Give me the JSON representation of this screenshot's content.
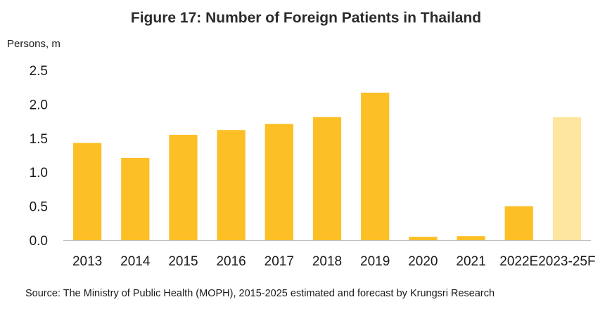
{
  "title": "Figure 17: Number of Foreign Patients in Thailand",
  "source": "Source: The Ministry of Public Health (MOPH),  2015-2025 estimated and forecast by Krungsri Research",
  "colors": {
    "bar": "#FDBF26",
    "bar_forecast": "#FEE5A0",
    "axis": "#bfbfbf"
  },
  "chart_data": {
    "type": "bar",
    "title": "Figure 17: Number of Foreign Patients in Thailand",
    "ylabel": "Persons, m",
    "xlabel": "",
    "ylim": [
      0,
      2.5
    ],
    "yticks": [
      "0.0",
      "0.5",
      "1.0",
      "1.5",
      "2.0",
      "2.5"
    ],
    "categories": [
      "2013",
      "2014",
      "2015",
      "2016",
      "2017",
      "2018",
      "2019",
      "2020",
      "2021",
      "2022E",
      "2023-25F"
    ],
    "values": [
      1.43,
      1.21,
      1.55,
      1.62,
      1.71,
      1.81,
      2.17,
      0.05,
      0.06,
      0.5,
      1.81
    ],
    "forecast_categories": [
      "2023-25F"
    ],
    "grid": false,
    "legend": "none"
  }
}
